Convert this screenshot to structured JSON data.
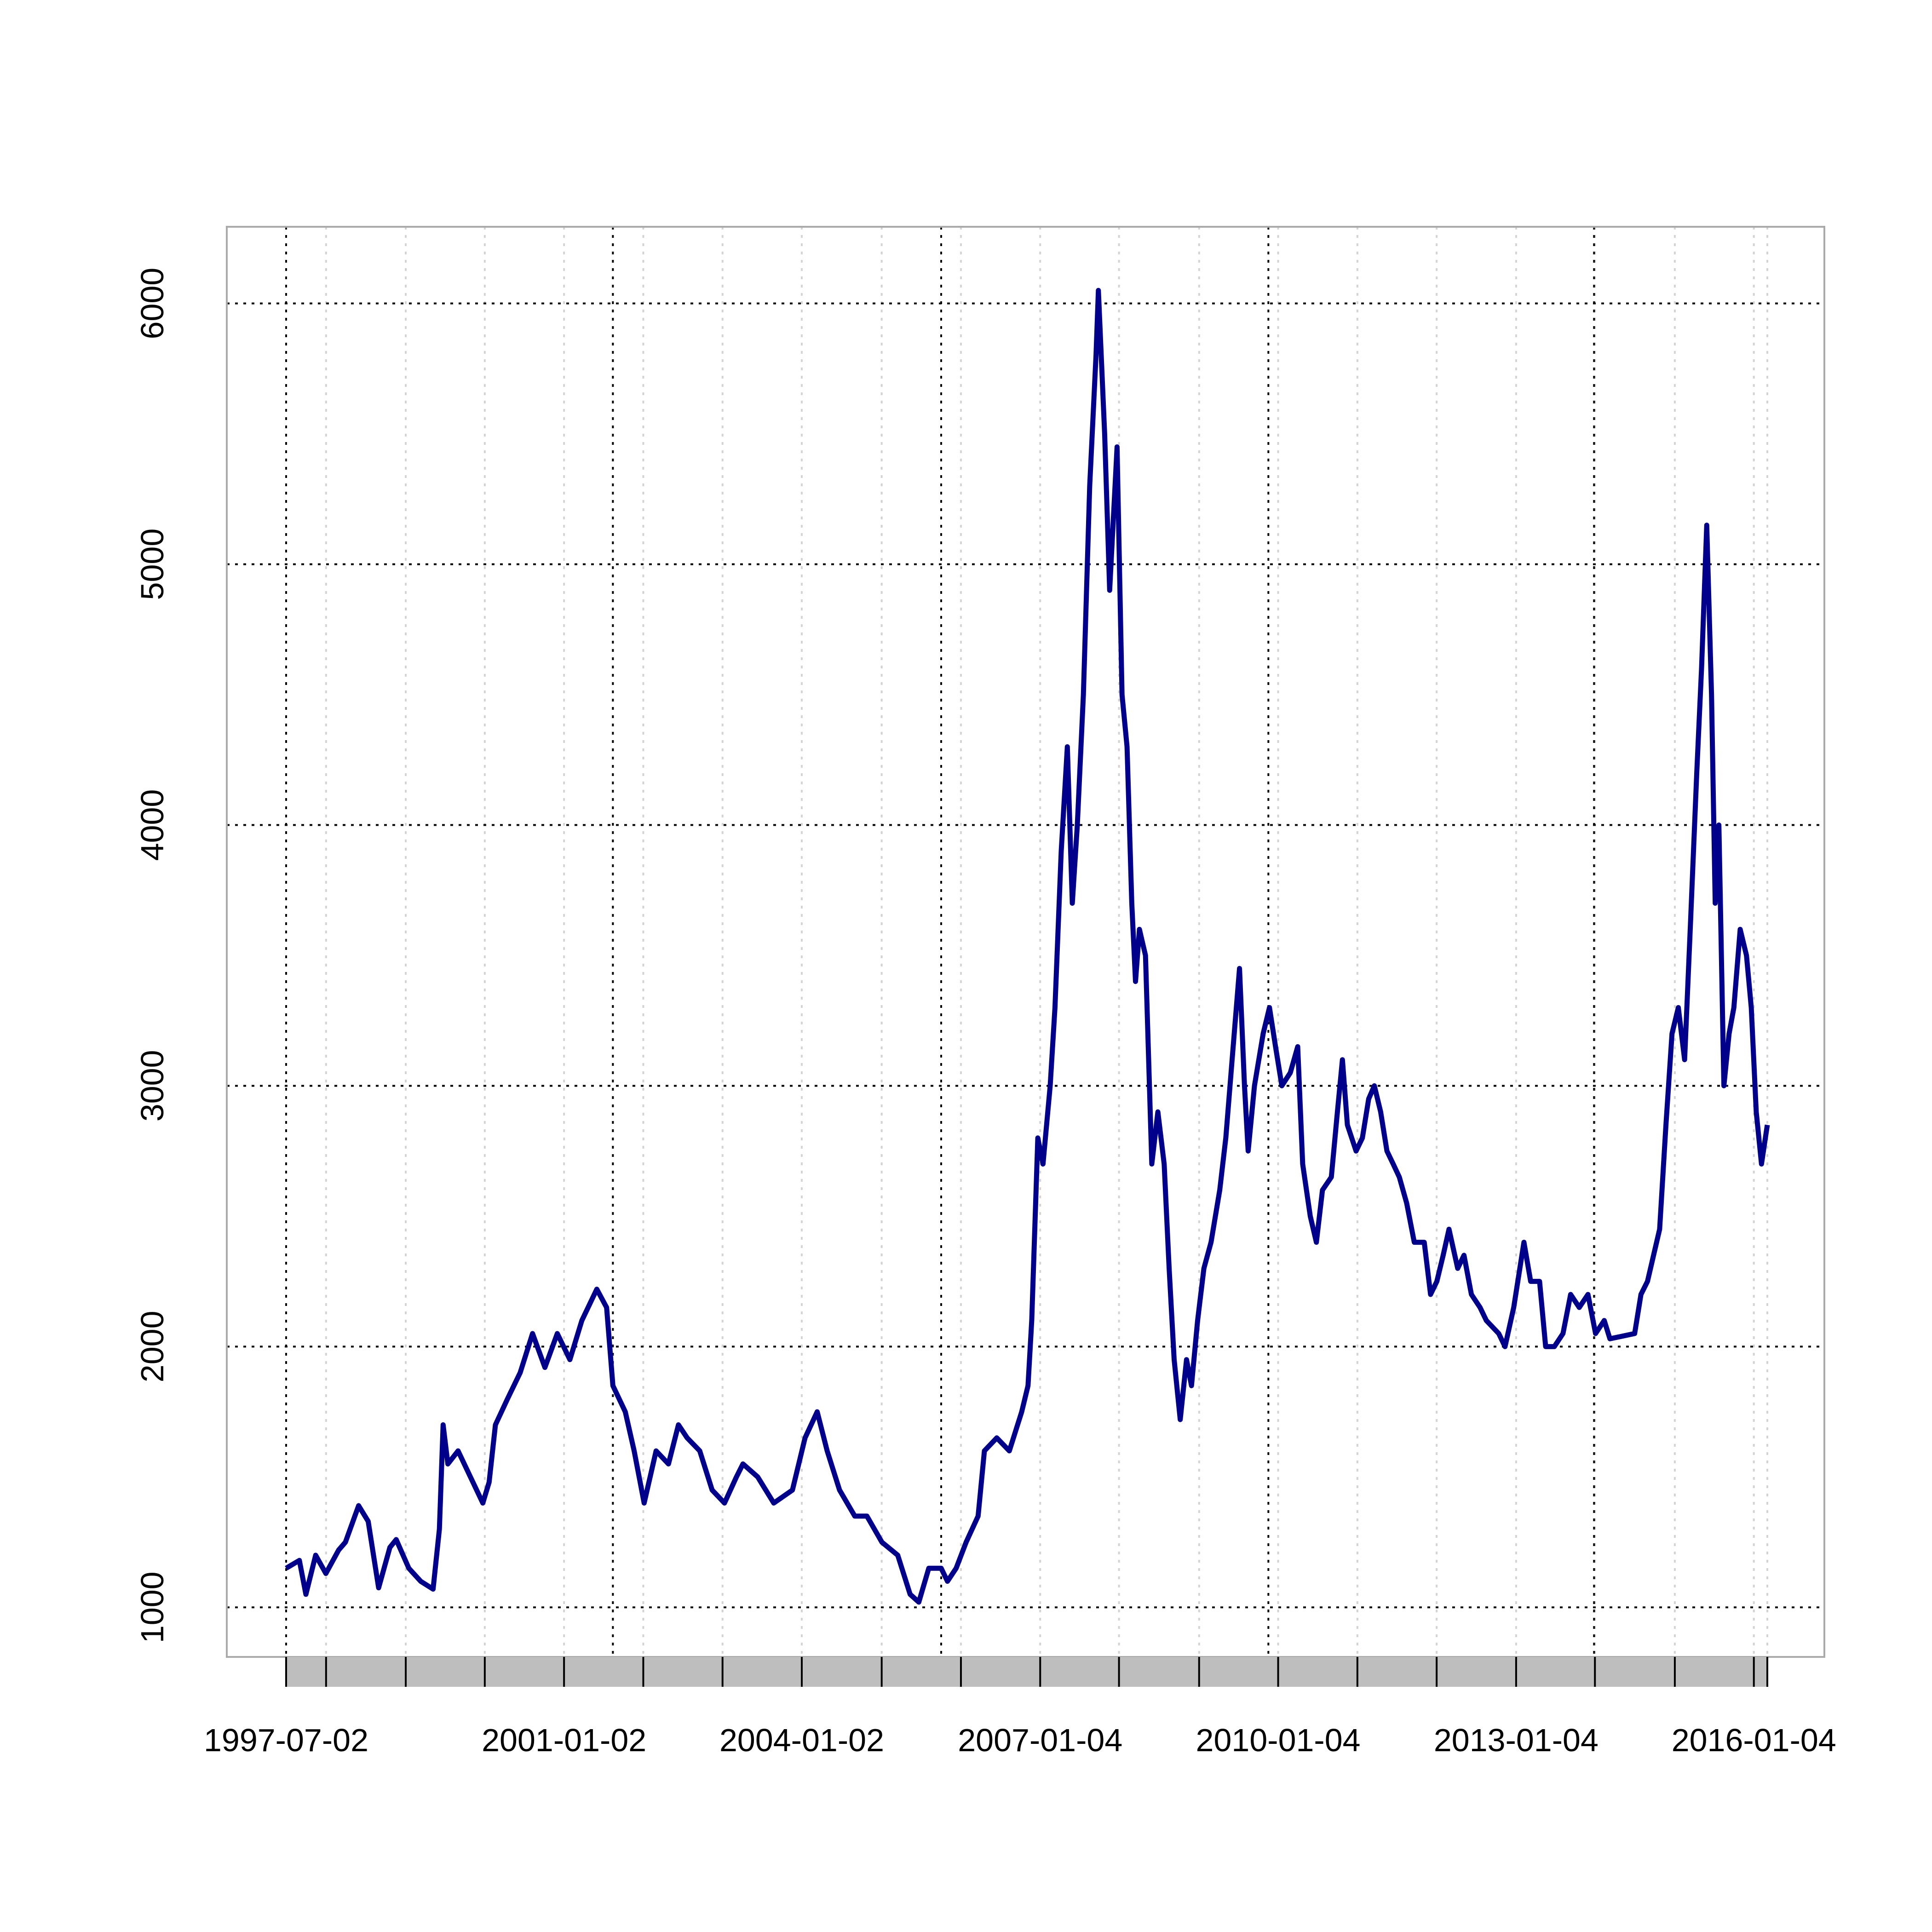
{
  "chart_data": {
    "type": "line",
    "x": [
      "1997-07-02",
      "1997-09-01",
      "1997-10-01",
      "1997-11-15",
      "1998-01-01",
      "1998-03-01",
      "1998-04-01",
      "1998-06-01",
      "1998-07-15",
      "1998-09-01",
      "1998-10-23",
      "1998-11-21",
      "1999-01-18",
      "1999-03-14",
      "1999-05-10",
      "1999-06-08",
      "1999-06-25",
      "1999-07-17",
      "1999-09-02",
      "1999-10-29",
      "1999-12-25",
      "2000-01-23",
      "2000-02-21",
      "2000-04-17",
      "2000-06-14",
      "2000-08-10",
      "2000-10-06",
      "2000-12-02",
      "2001-01-29",
      "2001-03-25",
      "2001-06-02",
      "2001-07-17",
      "2001-08-15",
      "2001-10-11",
      "2001-11-21",
      "2002-01-06",
      "2002-03-02",
      "2002-04-28",
      "2002-06-13",
      "2002-07-23",
      "2002-09-19",
      "2002-11-15",
      "2003-01-11",
      "2003-03-07",
      "2003-04-06",
      "2003-06-13",
      "2003-08-26",
      "2003-11-20",
      "2004-01-17",
      "2004-03-13",
      "2004-04-28",
      "2004-06-24",
      "2004-09-02",
      "2004-10-28",
      "2005-01-05",
      "2005-03-19",
      "2005-05-15",
      "2005-06-24",
      "2005-08-09",
      "2005-10-05",
      "2005-11-03",
      "2005-12-13",
      "2006-01-28",
      "2006-03-24",
      "2006-04-22",
      "2006-06-18",
      "2006-08-15",
      "2006-10-11",
      "2006-11-09",
      "2006-11-26",
      "2006-12-24",
      "2007-01-17",
      "2007-02-19",
      "2007-03-13",
      "2007-04-11",
      "2007-05-09",
      "2007-06-01",
      "2007-06-24",
      "2007-07-22",
      "2007-08-20",
      "2007-09-18",
      "2007-09-29",
      "2007-10-28",
      "2007-11-20",
      "2007-12-24",
      "2008-01-16",
      "2008-02-08",
      "2008-03-01",
      "2008-03-18",
      "2008-04-05",
      "2008-05-03",
      "2008-06-01",
      "2008-06-29",
      "2008-07-28",
      "2008-08-20",
      "2008-09-12",
      "2008-10-10",
      "2008-11-08",
      "2008-12-01",
      "2008-12-29",
      "2009-01-27",
      "2009-03-01",
      "2009-04-10",
      "2009-05-08",
      "2009-06-06",
      "2009-07-10",
      "2009-08-02",
      "2009-08-19",
      "2009-09-17",
      "2009-10-27",
      "2009-11-25",
      "2009-12-23",
      "2010-01-21",
      "2010-03-01",
      "2010-04-04",
      "2010-04-27",
      "2010-06-01",
      "2010-06-29",
      "2010-07-27",
      "2010-09-06",
      "2010-10-04",
      "2010-10-27",
      "2010-11-19",
      "2010-12-29",
      "2011-01-27",
      "2011-02-25",
      "2011-03-23",
      "2011-04-21",
      "2011-05-20",
      "2011-06-18",
      "2011-07-16",
      "2011-08-19",
      "2011-09-23",
      "2011-11-08",
      "2011-12-07",
      "2012-01-05",
      "2012-02-03",
      "2012-03-01",
      "2012-04-10",
      "2012-05-09",
      "2012-06-12",
      "2012-07-22",
      "2012-08-20",
      "2012-10-16",
      "2012-11-14",
      "2012-12-24",
      "2013-02-09",
      "2013-03-12",
      "2013-04-22",
      "2013-05-20",
      "2013-06-29",
      "2013-08-08",
      "2013-09-12",
      "2013-10-22",
      "2013-12-01",
      "2014-01-05",
      "2014-02-14",
      "2014-03-12",
      "2014-05-08",
      "2014-07-04",
      "2014-08-02",
      "2014-09-01",
      "2014-09-29",
      "2014-10-27",
      "2014-11-25",
      "2014-12-23",
      "2015-01-21",
      "2015-02-19",
      "2015-03-17",
      "2015-04-16",
      "2015-05-08",
      "2015-06-01",
      "2015-06-23",
      "2015-07-10",
      "2015-07-27",
      "2015-08-19",
      "2015-09-12",
      "2015-10-04",
      "2015-11-02",
      "2015-12-01",
      "2015-12-23",
      "2016-01-15",
      "2016-02-08",
      "2016-03-06"
    ],
    "series": [
      {
        "color": "#00008b",
        "values": [
          1150,
          1180,
          1050,
          1200,
          1130,
          1220,
          1250,
          1390,
          1330,
          1075,
          1230,
          1260,
          1150,
          1100,
          1070,
          1300,
          1700,
          1550,
          1600,
          1500,
          1400,
          1480,
          1700,
          1800,
          1900,
          2050,
          1920,
          2050,
          1950,
          2100,
          2220,
          2150,
          1850,
          1750,
          1600,
          1400,
          1600,
          1550,
          1700,
          1650,
          1600,
          1450,
          1400,
          1500,
          1550,
          1500,
          1400,
          1450,
          1650,
          1750,
          1600,
          1450,
          1350,
          1350,
          1250,
          1200,
          1050,
          1020,
          1150,
          1150,
          1100,
          1150,
          1250,
          1350,
          1600,
          1650,
          1600,
          1750,
          1850,
          2100,
          2800,
          2700,
          3000,
          3300,
          3900,
          4300,
          3700,
          4000,
          4500,
          5300,
          5800,
          6050,
          5500,
          4900,
          5450,
          4500,
          4300,
          3700,
          3400,
          3600,
          3500,
          2700,
          2900,
          2700,
          2300,
          1950,
          1720,
          1950,
          1850,
          2100,
          2300,
          2400,
          2600,
          2800,
          3100,
          3450,
          3000,
          2750,
          3000,
          3200,
          3300,
          3150,
          3000,
          3050,
          3150,
          2700,
          2500,
          2400,
          2600,
          2650,
          2900,
          3100,
          2850,
          2750,
          2800,
          2950,
          3000,
          2900,
          2750,
          2700,
          2650,
          2550,
          2400,
          2400,
          2200,
          2250,
          2350,
          2450,
          2300,
          2350,
          2200,
          2150,
          2100,
          2050,
          2000,
          2150,
          2400,
          2250,
          2250,
          2000,
          2000,
          2050,
          2200,
          2150,
          2200,
          2050,
          2100,
          2030,
          2040,
          2050,
          2200,
          2250,
          2350,
          2450,
          2850,
          3200,
          3300,
          3100,
          3600,
          4200,
          4600,
          5150,
          4500,
          3700,
          4000,
          3000,
          3200,
          3300,
          3600,
          3500,
          3300,
          2900,
          2700,
          2850
        ]
      }
    ],
    "ylim": [
      810,
      6294
    ],
    "yticks": [
      1000,
      2000,
      3000,
      4000,
      5000,
      6000
    ],
    "xticks": [
      "1997-07-02",
      {
        "value": "1998-01-02"
      },
      {
        "value": "1999-01-04"
      },
      {
        "value": "2000-01-03"
      },
      "2001-01-02",
      {
        "value": "2002-01-02"
      },
      {
        "value": "2003-01-02"
      },
      "2004-01-02",
      {
        "value": "2005-01-04"
      },
      {
        "value": "2006-01-04"
      },
      "2007-01-04",
      {
        "value": "2008-01-02"
      },
      {
        "value": "2009-01-05"
      },
      "2010-01-04",
      {
        "value": "2011-01-04"
      },
      {
        "value": "2012-01-04"
      },
      "2013-01-04",
      {
        "value": "2014-01-02"
      },
      {
        "value": "2015-01-05"
      },
      "2016-01-04",
      {
        "value": "2016-03-06"
      }
    ],
    "xgrid_major": [
      "1997-07-02",
      "2001-08-15",
      "2005-10-05",
      "2009-11-20",
      "2013-12-29"
    ],
    "grid": true
  }
}
